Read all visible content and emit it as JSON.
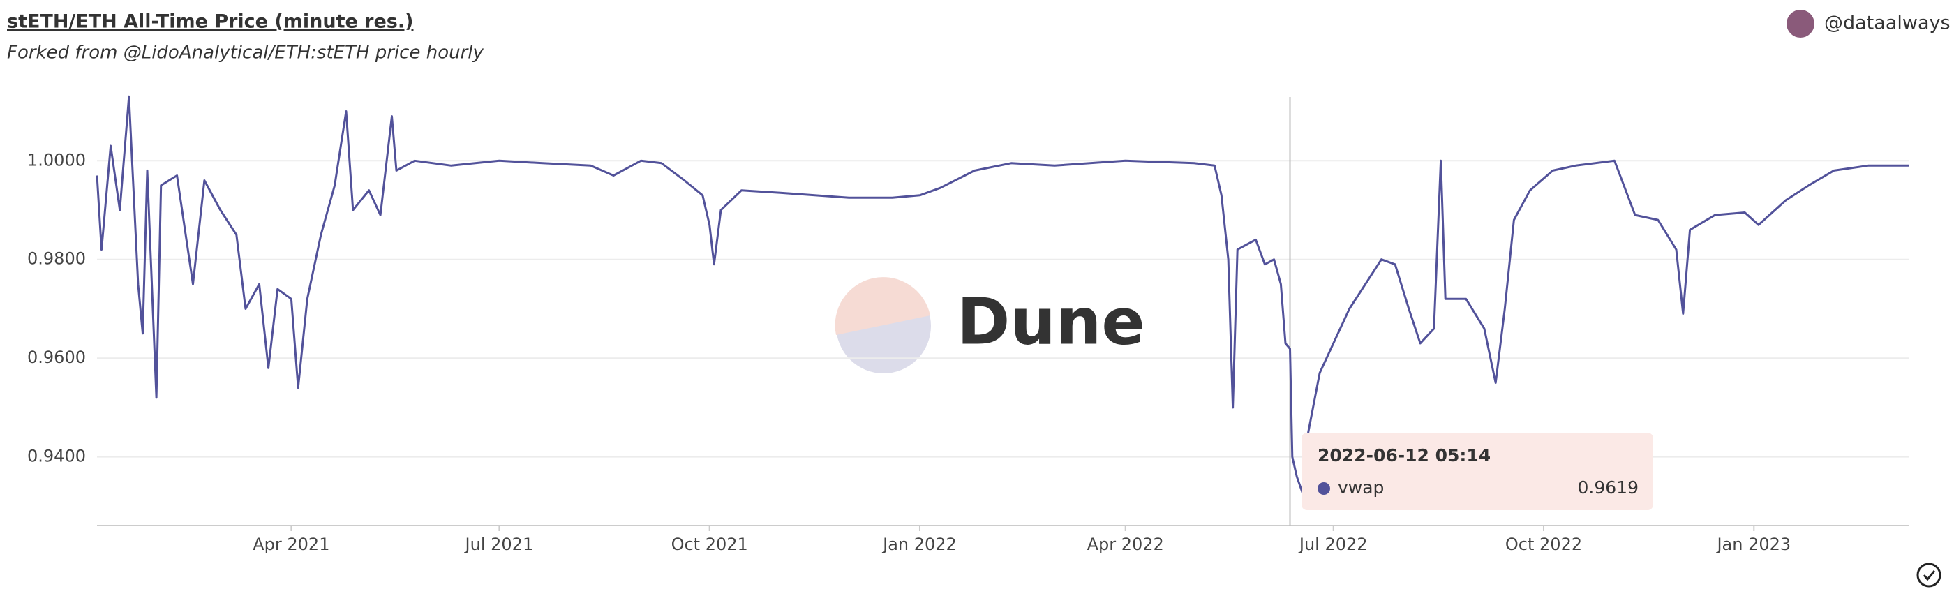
{
  "chart_data": {
    "type": "line",
    "title": "stETH/ETH All-Time Price (minute res.)",
    "subtitle": "Forked from @LidoAnalytical/ETH:stETH price hourly",
    "author": "@dataalways",
    "watermark": "Dune",
    "x": [
      "2021-01-06",
      "2021-01-08",
      "2021-01-12",
      "2021-01-16",
      "2021-01-20",
      "2021-01-24",
      "2021-01-26",
      "2021-01-28",
      "2021-02-01",
      "2021-02-03",
      "2021-02-10",
      "2021-02-17",
      "2021-02-22",
      "2021-03-01",
      "2021-03-08",
      "2021-03-12",
      "2021-03-18",
      "2021-03-22",
      "2021-03-26",
      "2021-04-01",
      "2021-04-04",
      "2021-04-08",
      "2021-04-14",
      "2021-04-20",
      "2021-04-25",
      "2021-04-28",
      "2021-05-05",
      "2021-05-10",
      "2021-05-15",
      "2021-05-17",
      "2021-05-25",
      "2021-06-10",
      "2021-07-01",
      "2021-07-20",
      "2021-08-10",
      "2021-08-20",
      "2021-09-01",
      "2021-09-10",
      "2021-09-20",
      "2021-09-28",
      "2021-10-01",
      "2021-10-03",
      "2021-10-06",
      "2021-10-15",
      "2021-11-01",
      "2021-12-01",
      "2021-12-20",
      "2022-01-01",
      "2022-01-10",
      "2022-01-25",
      "2022-02-10",
      "2022-03-01",
      "2022-04-01",
      "2022-05-01",
      "2022-05-10",
      "2022-05-13",
      "2022-05-16",
      "2022-05-18",
      "2022-05-20",
      "2022-05-28",
      "2022-06-01",
      "2022-06-05",
      "2022-06-08",
      "2022-06-10",
      "2022-06-12",
      "2022-06-13",
      "2022-06-15",
      "2022-06-18",
      "2022-06-20",
      "2022-06-25",
      "2022-07-01",
      "2022-07-08",
      "2022-07-15",
      "2022-07-22",
      "2022-07-28",
      "2022-08-03",
      "2022-08-08",
      "2022-08-14",
      "2022-08-17",
      "2022-08-19",
      "2022-08-28",
      "2022-09-05",
      "2022-09-10",
      "2022-09-14",
      "2022-09-18",
      "2022-09-25",
      "2022-10-05",
      "2022-10-15",
      "2022-11-01",
      "2022-11-10",
      "2022-11-20",
      "2022-11-28",
      "2022-12-01",
      "2022-12-04",
      "2022-12-15",
      "2022-12-28",
      "2023-01-03",
      "2023-01-15",
      "2023-01-25",
      "2023-02-05",
      "2023-02-20",
      "2023-03-10"
    ],
    "series": [
      {
        "name": "vwap",
        "color": "#52529a",
        "values": [
          0.997,
          0.982,
          1.003,
          0.99,
          1.013,
          0.975,
          0.965,
          0.998,
          0.952,
          0.995,
          0.997,
          0.975,
          0.996,
          0.99,
          0.985,
          0.97,
          0.975,
          0.958,
          0.974,
          0.972,
          0.954,
          0.972,
          0.985,
          0.995,
          1.01,
          0.99,
          0.994,
          0.989,
          1.009,
          0.998,
          1.0,
          0.999,
          1.0,
          0.9995,
          0.999,
          0.997,
          1.0,
          0.9995,
          0.996,
          0.993,
          0.987,
          0.979,
          0.99,
          0.994,
          0.9935,
          0.9925,
          0.9925,
          0.993,
          0.9945,
          0.998,
          0.9995,
          0.999,
          1.0,
          0.9995,
          0.999,
          0.993,
          0.98,
          0.95,
          0.982,
          0.984,
          0.979,
          0.98,
          0.975,
          0.963,
          0.9619,
          0.94,
          0.936,
          0.932,
          0.945,
          0.957,
          0.963,
          0.97,
          0.975,
          0.98,
          0.979,
          0.97,
          0.963,
          0.966,
          1.0,
          0.972,
          0.972,
          0.966,
          0.955,
          0.97,
          0.988,
          0.994,
          0.998,
          0.999,
          1.0,
          0.989,
          0.988,
          0.982,
          0.969,
          0.986,
          0.989,
          0.9895,
          0.987,
          0.992,
          0.995,
          0.998,
          0.999,
          0.999
        ]
      }
    ],
    "xlim": [
      "2021-01-06",
      "2023-03-10"
    ],
    "xticks": [
      {
        "value": "2021-04-01",
        "label": "Apr 2021"
      },
      {
        "value": "2021-07-01",
        "label": "Jul 2021"
      },
      {
        "value": "2021-10-01",
        "label": "Oct 2021"
      },
      {
        "value": "2022-01-01",
        "label": "Jan 2022"
      },
      {
        "value": "2022-04-01",
        "label": "Apr 2022"
      },
      {
        "value": "2022-07-01",
        "label": "Jul 2022"
      },
      {
        "value": "2022-10-01",
        "label": "Oct 2022"
      },
      {
        "value": "2023-01-01",
        "label": "Jan 2023"
      }
    ],
    "ylim": [
      0.9261,
      1.0129
    ],
    "yticks": [
      {
        "value": 0.94,
        "label": "0.9400"
      },
      {
        "value": 0.96,
        "label": "0.9600"
      },
      {
        "value": 0.98,
        "label": "0.9800"
      },
      {
        "value": 1,
        "label": "1.0000"
      }
    ],
    "grid": true,
    "tooltip": {
      "title": "2022-06-12 05:14"
    }
  }
}
